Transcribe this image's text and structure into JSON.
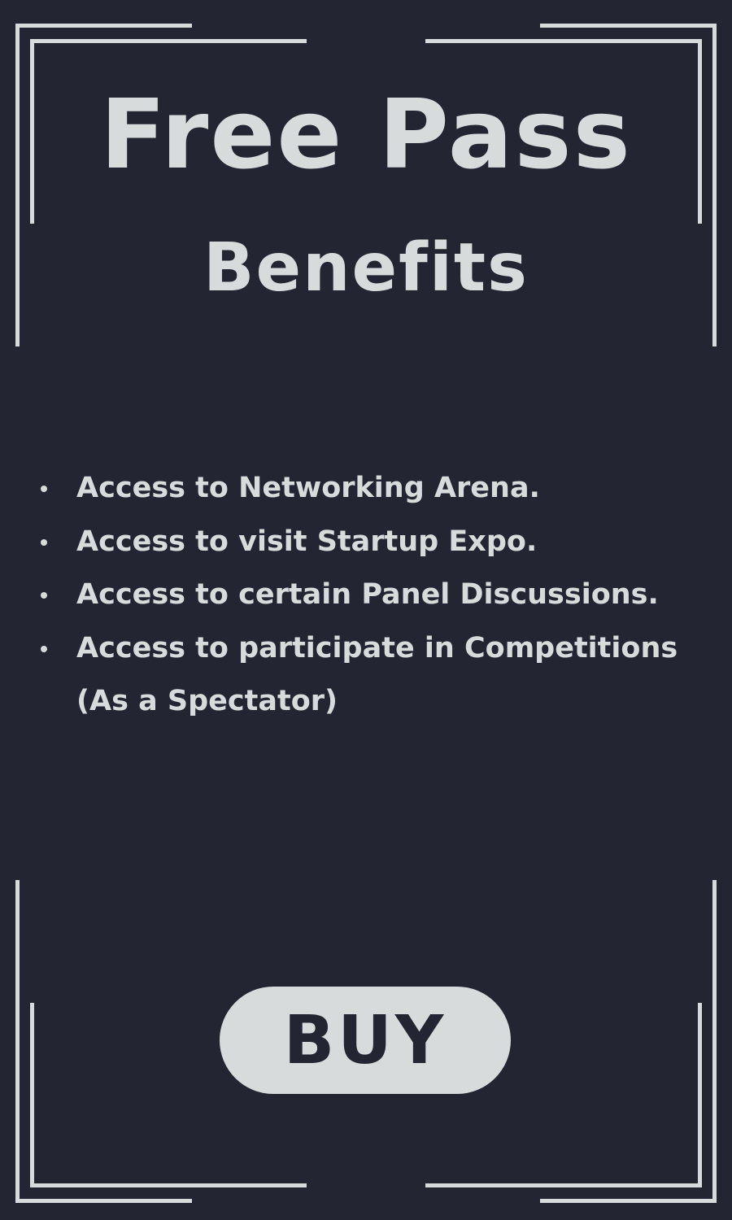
{
  "colors": {
    "background": "#232533",
    "foreground": "#d8dbdb"
  },
  "header": {
    "title_line1": "Free Pass",
    "title_line2": "Benefits"
  },
  "benefits": [
    "Access to Networking Arena.",
    "Access to visit Startup Expo.",
    "Access to certain Panel Discussions.",
    "Access to participate in Competitions (As a Spectator)"
  ],
  "actions": {
    "buy_label": "BUY"
  }
}
